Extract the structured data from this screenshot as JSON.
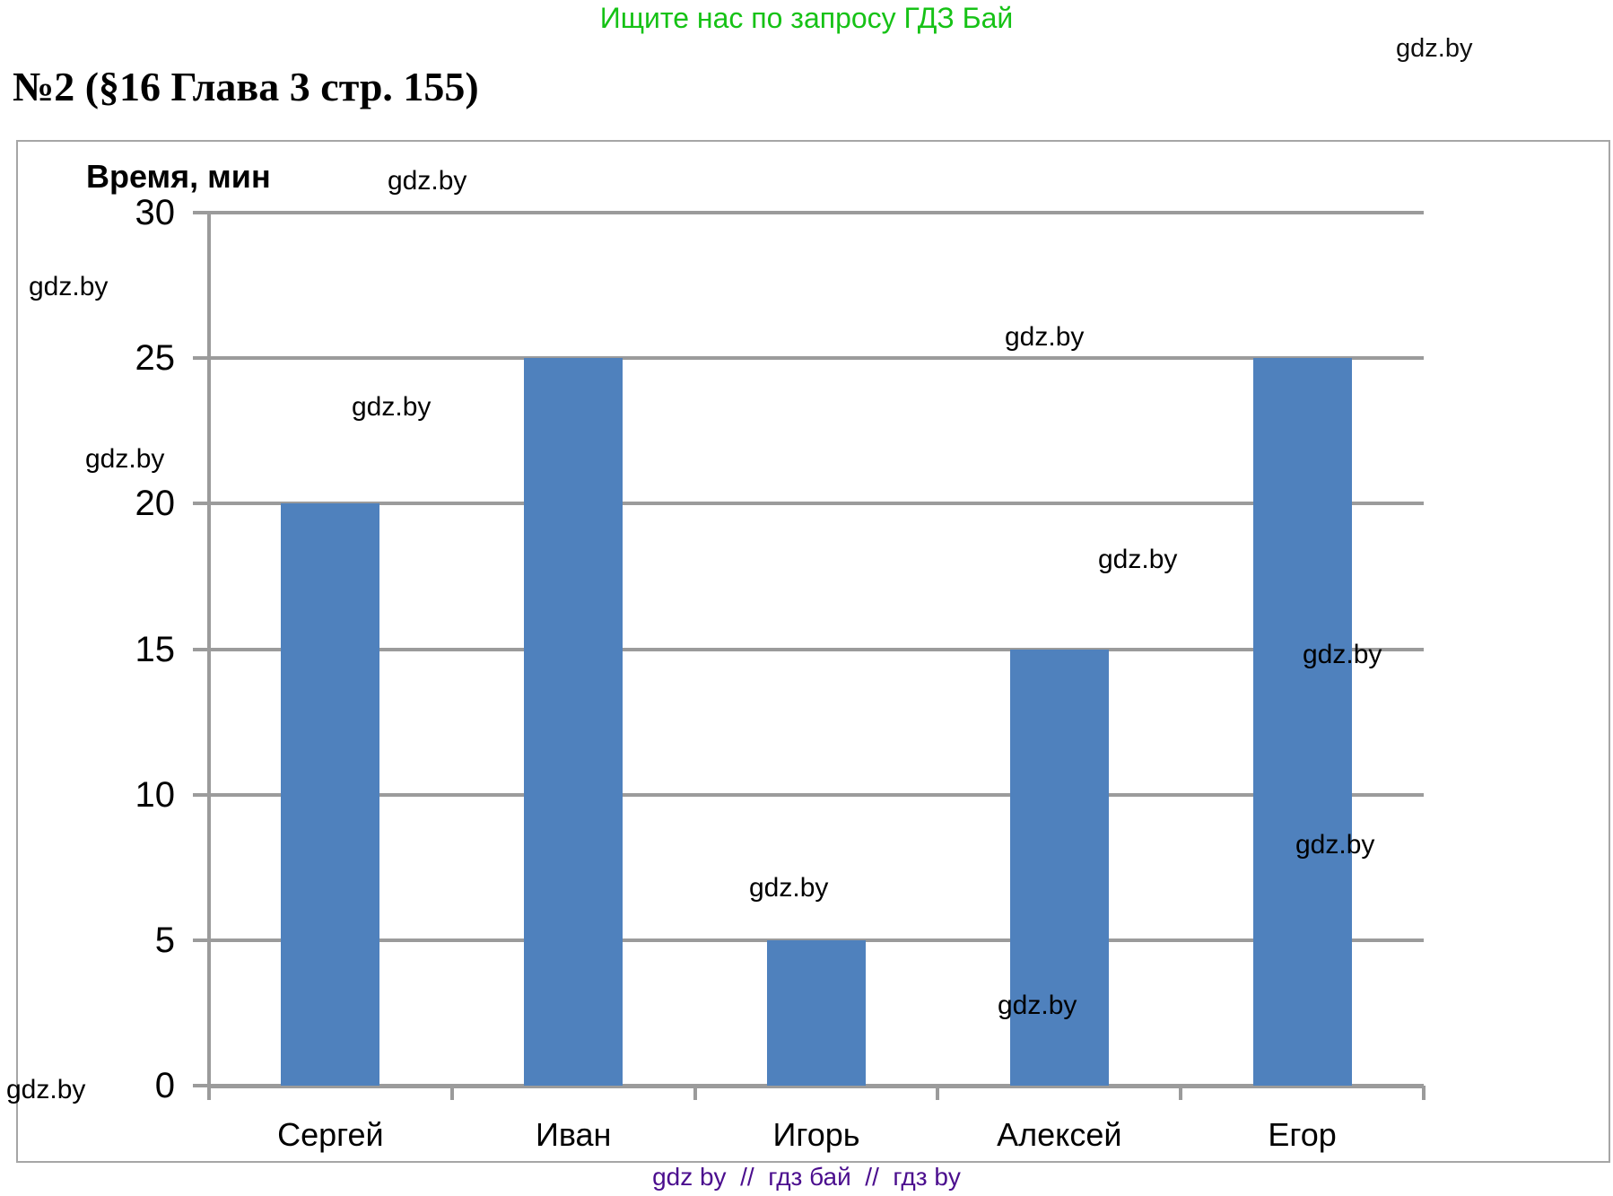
{
  "header": {
    "promo": "Ищите нас по запросу ГДЗ Бай",
    "watermark": "gdz.by"
  },
  "title": "№2 (§16 Глава 3 стр. 155)",
  "watermark_text": "gdz.by",
  "footer": "gdz by  //  гдз бай  //  гдз by",
  "chart_data": {
    "type": "bar",
    "title": "",
    "ylabel": "Время, мин",
    "xlabel": "",
    "categories": [
      "Сергей",
      "Иван",
      "Игорь",
      "Алексей",
      "Егор"
    ],
    "values": [
      20,
      25,
      5,
      15,
      25
    ],
    "yticks": [
      30,
      25,
      20,
      15,
      10,
      5,
      0
    ],
    "ylim": [
      0,
      30
    ],
    "grid": true,
    "legend": false,
    "bar_color": "#4f81bd",
    "gridline_color": "#9b9b9b",
    "border_color": "#a6a6a6",
    "promo_color": "#16c216",
    "footer_color": "#4b0e8e"
  }
}
